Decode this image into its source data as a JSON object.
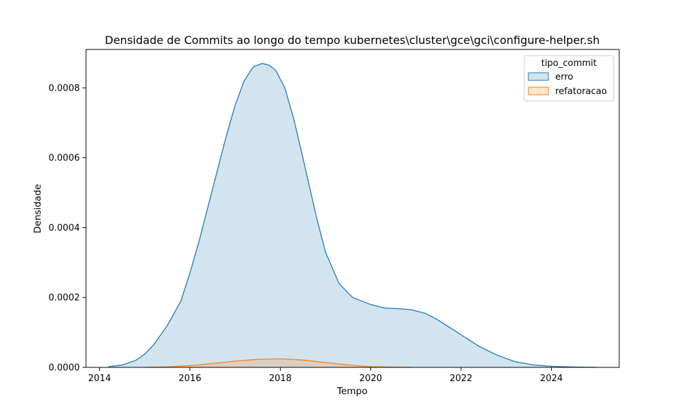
{
  "chart_data": {
    "type": "area",
    "title": "Densidade de Commits ao longo do tempo kubernetes\\cluster\\gce\\gci\\configure-helper.sh",
    "xlabel": "Tempo",
    "ylabel": "Densidade",
    "xlim": [
      2013.7,
      2025.5
    ],
    "ylim": [
      0,
      0.00091
    ],
    "xticks": [
      2014,
      2016,
      2018,
      2020,
      2022,
      2024
    ],
    "xtick_labels": [
      "2014",
      "2016",
      "2018",
      "2020",
      "2022",
      "2024"
    ],
    "yticks": [
      0,
      0.0002,
      0.0004,
      0.0006,
      0.0008
    ],
    "ytick_labels": [
      "0.0000",
      "0.0002",
      "0.0004",
      "0.0006",
      "0.0008"
    ],
    "legend": {
      "title": "tipo_commit",
      "position": "top-right",
      "entries": [
        "erro",
        "refatoracao"
      ]
    },
    "grid": false,
    "series": [
      {
        "name": "erro",
        "color": "#1f77b4",
        "x": [
          2014.2,
          2014.5,
          2014.8,
          2015.0,
          2015.2,
          2015.5,
          2015.8,
          2016.0,
          2016.2,
          2016.5,
          2016.8,
          2017.0,
          2017.2,
          2017.4,
          2017.6,
          2017.75,
          2017.9,
          2018.1,
          2018.3,
          2018.5,
          2018.8,
          2019.0,
          2019.3,
          2019.6,
          2020.0,
          2020.3,
          2020.6,
          2020.9,
          2021.2,
          2021.5,
          2021.8,
          2022.1,
          2022.4,
          2022.8,
          2023.2,
          2023.6,
          2024.0,
          2024.5,
          2025.0
        ],
        "y": [
          2e-06,
          7e-06,
          2e-05,
          3.8e-05,
          6.5e-05,
          0.00012,
          0.00019,
          0.00027,
          0.00036,
          0.00051,
          0.00066,
          0.00075,
          0.00082,
          0.00086,
          0.00087,
          0.000865,
          0.00085,
          0.0008,
          0.00071,
          0.0006,
          0.00043,
          0.00033,
          0.00024,
          0.0002,
          0.00018,
          0.00017,
          0.000168,
          0.000165,
          0.000155,
          0.000135,
          0.00011,
          8.5e-05,
          6e-05,
          3.5e-05,
          1.6e-05,
          7e-06,
          3e-06,
          1e-06,
          2e-07
        ]
      },
      {
        "name": "refatoracao",
        "color": "#ff7f0e",
        "x": [
          2015.0,
          2015.5,
          2016.0,
          2016.5,
          2017.0,
          2017.5,
          2018.0,
          2018.5,
          2019.0,
          2019.5,
          2020.0,
          2020.5,
          2020.9
        ],
        "y": [
          3e-07,
          1.5e-06,
          5e-06,
          1.1e-05,
          1.8e-05,
          2.3e-05,
          2.45e-05,
          2.1e-05,
          1.4e-05,
          7e-06,
          2e-06,
          6e-07,
          1e-07
        ]
      }
    ]
  }
}
